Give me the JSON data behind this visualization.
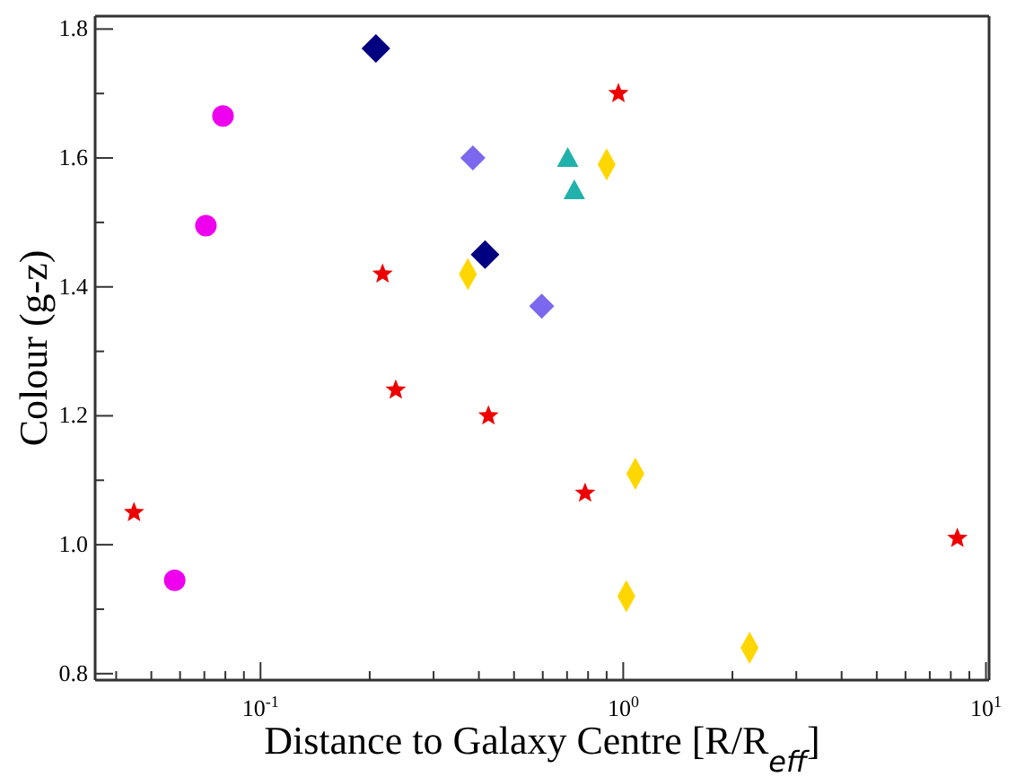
{
  "chart_data": {
    "type": "scatter",
    "xlabel": "Distance to Galaxy Centre [R/R$_{eff}$]",
    "ylabel": "Colour (g-z)",
    "log": "x",
    "xlim": [
      0.035,
      10.2
    ],
    "xticks": [
      {
        "value": 0.04,
        "label": null
      },
      {
        "value": 0.05,
        "label": null
      },
      {
        "value": 0.06,
        "label": null
      },
      {
        "value": 0.07,
        "label": null
      },
      {
        "value": 0.08,
        "label": null
      },
      {
        "value": 0.09,
        "label": null
      },
      {
        "value": 0.1,
        "label": "10$^{-1}$"
      },
      {
        "value": 0.2,
        "label": null
      },
      {
        "value": 0.3,
        "label": null
      },
      {
        "value": 0.4,
        "label": null
      },
      {
        "value": 0.5,
        "label": null
      },
      {
        "value": 0.6,
        "label": null
      },
      {
        "value": 0.7,
        "label": null
      },
      {
        "value": 0.8,
        "label": null
      },
      {
        "value": 0.9,
        "label": null
      },
      {
        "value": 1,
        "label": "10$^{0}$"
      },
      {
        "value": 2,
        "label": null
      },
      {
        "value": 3,
        "label": null
      },
      {
        "value": 4,
        "label": null
      },
      {
        "value": 5,
        "label": null
      },
      {
        "value": 6,
        "label": null
      },
      {
        "value": 7,
        "label": null
      },
      {
        "value": 8,
        "label": null
      },
      {
        "value": 9,
        "label": null
      },
      {
        "value": 10,
        "label": "10$^{1}$"
      }
    ],
    "ylim": [
      0.79,
      1.82
    ],
    "yticks": [
      {
        "value": 0.8,
        "label": "0.8"
      },
      {
        "value": 0.9,
        "label": null
      },
      {
        "value": 1.0,
        "label": "1.0"
      },
      {
        "value": 1.1,
        "label": null
      },
      {
        "value": 1.2,
        "label": "1.2"
      },
      {
        "value": 1.3,
        "label": null
      },
      {
        "value": 1.4,
        "label": "1.4"
      },
      {
        "value": 1.5,
        "label": null
      },
      {
        "value": 1.6,
        "label": "1.6"
      },
      {
        "value": 1.7,
        "label": null
      },
      {
        "value": 1.8,
        "label": "1.8"
      }
    ],
    "series": [
      {
        "color": "#000080",
        "marker": "diamond",
        "x": [
          0.208,
          0.416
        ],
        "values": [
          1.77,
          1.45
        ]
      },
      {
        "color": "#ee00ee",
        "marker": "circle",
        "x": [
          0.0788,
          0.0707,
          0.058
        ],
        "values": [
          1.665,
          1.495,
          0.945
        ]
      },
      {
        "color": "#7b68ee",
        "marker": "diamond",
        "x": [
          0.385,
          0.596
        ],
        "values": [
          1.6,
          1.37
        ]
      },
      {
        "color": "#20b2aa",
        "marker": "triangle",
        "x": [
          0.703,
          0.733
        ],
        "values": [
          1.6,
          1.55
        ]
      },
      {
        "color": "#ffd700",
        "marker": "diamond",
        "x": [
          0.9,
          0.373,
          1.08,
          1.02,
          2.23
        ],
        "values": [
          1.59,
          1.42,
          1.11,
          0.92,
          0.84
        ]
      },
      {
        "color": "#ee0000",
        "marker": "star",
        "x": [
          0.97,
          0.217,
          0.236,
          0.425,
          0.785,
          0.0448,
          8.34
        ],
        "values": [
          1.7,
          1.42,
          1.24,
          1.2,
          1.08,
          1.05,
          1.01
        ]
      }
    ]
  }
}
